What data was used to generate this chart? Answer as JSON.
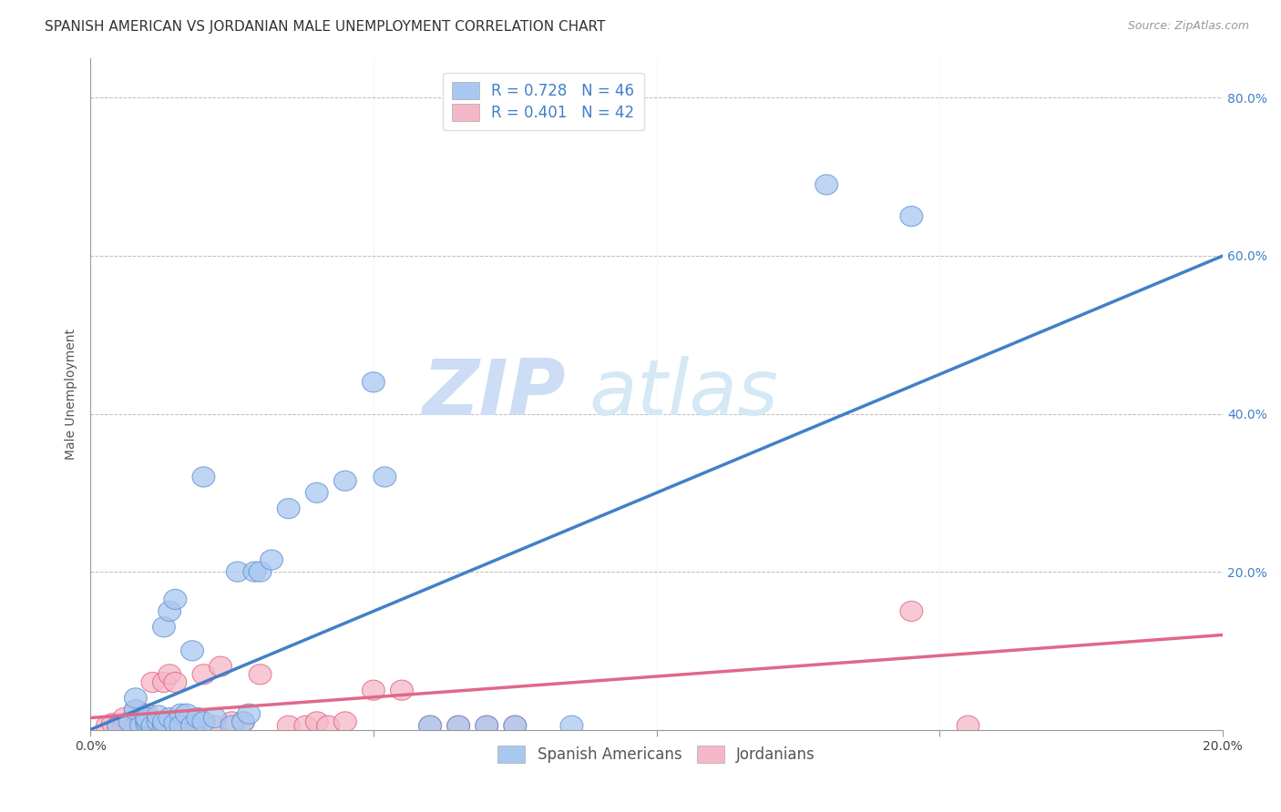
{
  "title": "SPANISH AMERICAN VS JORDANIAN MALE UNEMPLOYMENT CORRELATION CHART",
  "source": "Source: ZipAtlas.com",
  "ylabel": "Male Unemployment",
  "xlim": [
    0.0,
    0.2
  ],
  "ylim": [
    0.0,
    0.85
  ],
  "yticks": [
    0.0,
    0.2,
    0.4,
    0.6,
    0.8
  ],
  "ytick_labels": [
    "",
    "20.0%",
    "40.0%",
    "60.0%",
    "80.0%"
  ],
  "xticks": [
    0.0,
    0.05,
    0.1,
    0.15,
    0.2
  ],
  "xtick_labels": [
    "0.0%",
    "",
    "",
    "",
    "20.0%"
  ],
  "blue_color": "#a8c8f0",
  "pink_color": "#f5b8c8",
  "blue_edge_color": "#6090d0",
  "pink_edge_color": "#e06080",
  "blue_line_color": "#4080c8",
  "pink_line_color": "#e06888",
  "blue_r": 0.728,
  "blue_n": 46,
  "pink_r": 0.401,
  "pink_n": 42,
  "legend_label_blue": "Spanish Americans",
  "legend_label_pink": "Jordanians",
  "watermark_zip": "ZIP",
  "watermark_atlas": "atlas",
  "blue_scatter_x": [
    0.005,
    0.007,
    0.008,
    0.008,
    0.009,
    0.01,
    0.01,
    0.01,
    0.011,
    0.012,
    0.012,
    0.013,
    0.013,
    0.013,
    0.014,
    0.014,
    0.015,
    0.015,
    0.016,
    0.016,
    0.017,
    0.018,
    0.018,
    0.019,
    0.02,
    0.02,
    0.022,
    0.025,
    0.026,
    0.027,
    0.028,
    0.029,
    0.03,
    0.032,
    0.035,
    0.04,
    0.045,
    0.05,
    0.052,
    0.06,
    0.065,
    0.07,
    0.075,
    0.085,
    0.13,
    0.145
  ],
  "blue_scatter_y": [
    0.005,
    0.01,
    0.025,
    0.04,
    0.005,
    0.008,
    0.012,
    0.015,
    0.005,
    0.01,
    0.018,
    0.005,
    0.01,
    0.13,
    0.015,
    0.15,
    0.008,
    0.165,
    0.02,
    0.005,
    0.02,
    0.005,
    0.1,
    0.015,
    0.01,
    0.32,
    0.015,
    0.005,
    0.2,
    0.01,
    0.02,
    0.2,
    0.2,
    0.215,
    0.28,
    0.3,
    0.315,
    0.44,
    0.32,
    0.005,
    0.005,
    0.005,
    0.005,
    0.005,
    0.69,
    0.65
  ],
  "pink_scatter_x": [
    0.003,
    0.004,
    0.005,
    0.006,
    0.006,
    0.007,
    0.008,
    0.008,
    0.009,
    0.01,
    0.01,
    0.011,
    0.011,
    0.012,
    0.013,
    0.013,
    0.014,
    0.015,
    0.015,
    0.016,
    0.017,
    0.018,
    0.019,
    0.02,
    0.022,
    0.023,
    0.025,
    0.027,
    0.03,
    0.035,
    0.038,
    0.04,
    0.042,
    0.045,
    0.05,
    0.055,
    0.06,
    0.065,
    0.07,
    0.075,
    0.145,
    0.155
  ],
  "pink_scatter_y": [
    0.005,
    0.008,
    0.005,
    0.008,
    0.015,
    0.01,
    0.005,
    0.025,
    0.01,
    0.008,
    0.02,
    0.005,
    0.06,
    0.01,
    0.005,
    0.06,
    0.07,
    0.008,
    0.06,
    0.005,
    0.01,
    0.005,
    0.01,
    0.07,
    0.005,
    0.08,
    0.01,
    0.01,
    0.07,
    0.005,
    0.005,
    0.01,
    0.005,
    0.01,
    0.05,
    0.05,
    0.005,
    0.005,
    0.005,
    0.005,
    0.15,
    0.005
  ],
  "blue_line_x0": 0.0,
  "blue_line_y0": 0.0,
  "blue_line_x1": 0.2,
  "blue_line_y1": 0.6,
  "pink_line_x0": 0.0,
  "pink_line_y0": 0.015,
  "pink_line_x1": 0.2,
  "pink_line_y1": 0.12,
  "title_fontsize": 11,
  "source_fontsize": 9,
  "axis_label_fontsize": 10,
  "tick_fontsize": 10,
  "legend_fontsize": 12,
  "background_color": "#ffffff",
  "grid_color": "#bbbbbb"
}
